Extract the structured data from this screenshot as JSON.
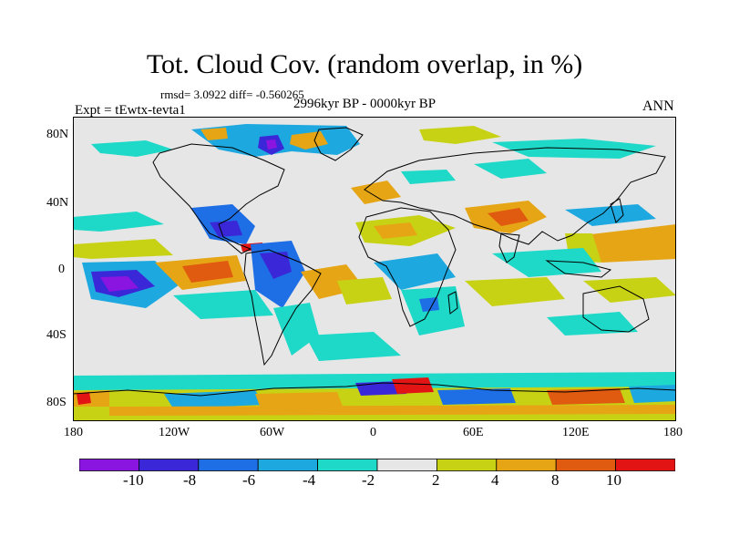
{
  "title": "Tot. Cloud Cov. (random overlap, in %)",
  "stats": "rmsd= 3.0922 diff= -0.560265",
  "experiment": "Expt = tEwtx-tevta1",
  "period": "2996kyr BP - 0000kyr BP",
  "season": "ANN",
  "map": {
    "y_labels": [
      "80N",
      "40N",
      "0",
      "40S",
      "80S"
    ],
    "x_labels": [
      "180",
      "120W",
      "60W",
      "0",
      "60E",
      "120E",
      "180"
    ],
    "background_color": "#e6e6e6"
  },
  "colorbar": {
    "tick_labels": [
      "-10",
      "-8",
      "-6",
      "-4",
      "-2",
      "2",
      "4",
      "8",
      "10"
    ],
    "colors": [
      "#8a14e0",
      "#3a28d8",
      "#1e6ee6",
      "#1ea8e0",
      "#1ed8c8",
      "#e6e6e6",
      "#c8d214",
      "#e6a514",
      "#e05a0f",
      "#e31414"
    ]
  }
}
